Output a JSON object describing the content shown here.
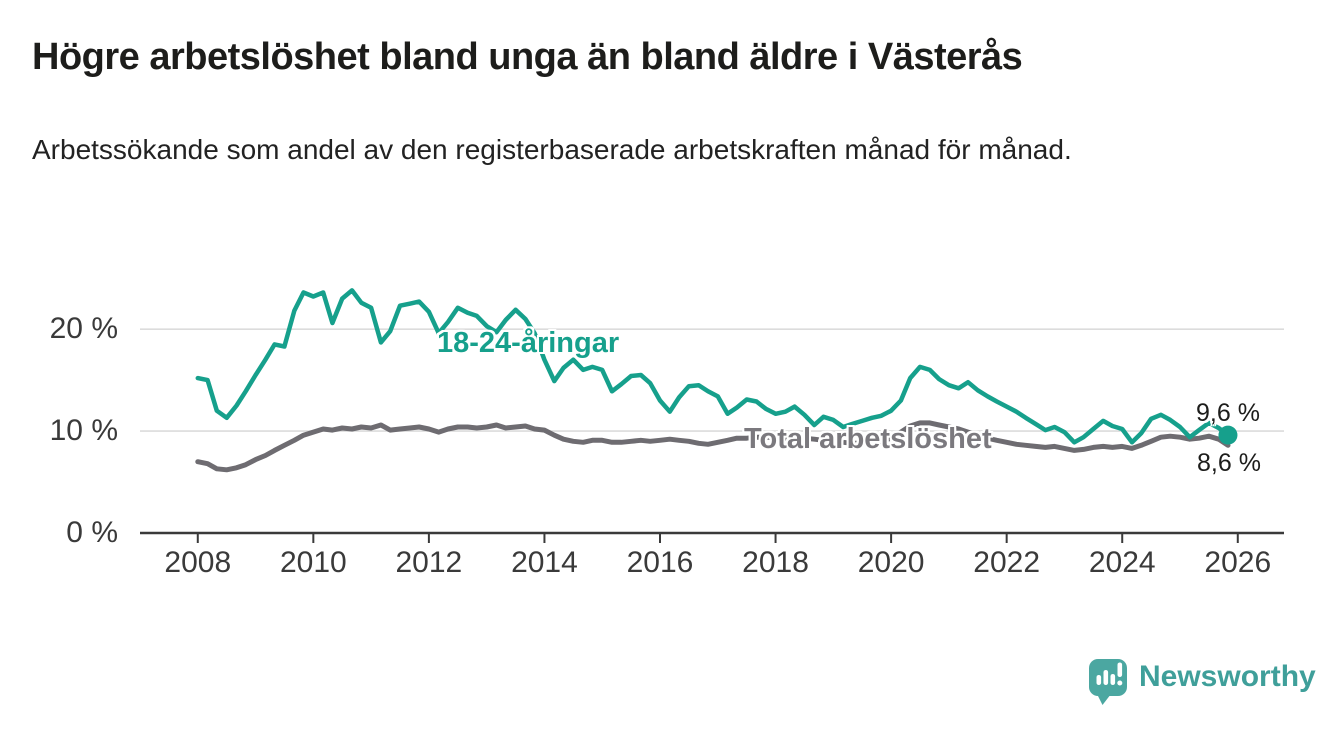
{
  "header": {
    "title": "Högre arbetslöshet bland unga än bland äldre i Västerås",
    "subtitle": "Arbetssökande som andel av den registerbaserade arbetskraften månad för månad."
  },
  "annotations": {
    "young_series_label": "18-24-åringar",
    "total_series_label": "Total arbetslöshet",
    "young_end_value": "9,6 %",
    "total_end_value": "8,6 %"
  },
  "footer": {
    "brand": "Newsworthy"
  },
  "colors": {
    "young_line": "#16a08c",
    "total_line": "#6e6c71",
    "total_label": "#7b797e",
    "grid": "#dcdcdc",
    "axis": "#3a3a3a",
    "text": "#1d1d1b",
    "logo_teal": "#4ba7a1",
    "logo_text": "#3f9f9a"
  },
  "chart_data": {
    "type": "line",
    "title": "Högre arbetslöshet bland unga än bland äldre i Västerås",
    "xlabel": "",
    "ylabel": "",
    "x_unit": "decimal_year_monthly",
    "xlim": [
      2007.0,
      2026.8
    ],
    "ylim": [
      0,
      26
    ],
    "grid": "horizontal",
    "legend": "inline-labels",
    "y_ticks": [
      {
        "value": 0,
        "label": "0 %"
      },
      {
        "value": 10,
        "label": "10 %"
      },
      {
        "value": 20,
        "label": "20 %"
      }
    ],
    "x_ticks": [
      {
        "value": 2008,
        "label": "2008"
      },
      {
        "value": 2010,
        "label": "2010"
      },
      {
        "value": 2012,
        "label": "2012"
      },
      {
        "value": 2014,
        "label": "2014"
      },
      {
        "value": 2016,
        "label": "2016"
      },
      {
        "value": 2018,
        "label": "2018"
      },
      {
        "value": 2020,
        "label": "2020"
      },
      {
        "value": 2022,
        "label": "2022"
      },
      {
        "value": 2024,
        "label": "2024"
      },
      {
        "value": 2026,
        "label": "2026"
      }
    ],
    "x": [
      2008,
      2008.17,
      2008.33,
      2008.5,
      2008.67,
      2008.83,
      2009,
      2009.17,
      2009.33,
      2009.5,
      2009.67,
      2009.83,
      2010,
      2010.17,
      2010.33,
      2010.5,
      2010.67,
      2010.83,
      2011,
      2011.17,
      2011.33,
      2011.5,
      2011.67,
      2011.83,
      2012,
      2012.17,
      2012.33,
      2012.5,
      2012.67,
      2012.83,
      2013,
      2013.17,
      2013.33,
      2013.5,
      2013.67,
      2013.83,
      2014,
      2014.17,
      2014.33,
      2014.5,
      2014.67,
      2014.83,
      2015,
      2015.17,
      2015.33,
      2015.5,
      2015.67,
      2015.83,
      2016,
      2016.17,
      2016.33,
      2016.5,
      2016.67,
      2016.83,
      2017,
      2017.17,
      2017.33,
      2017.5,
      2017.67,
      2017.83,
      2018,
      2018.17,
      2018.33,
      2018.5,
      2018.67,
      2018.83,
      2019,
      2019.17,
      2019.33,
      2019.5,
      2019.67,
      2019.83,
      2020,
      2020.17,
      2020.33,
      2020.5,
      2020.67,
      2020.83,
      2021,
      2021.17,
      2021.33,
      2021.5,
      2021.67,
      2021.83,
      2022,
      2022.17,
      2022.33,
      2022.5,
      2022.67,
      2022.83,
      2023,
      2023.17,
      2023.33,
      2023.5,
      2023.67,
      2023.83,
      2024,
      2024.17,
      2024.33,
      2024.5,
      2024.67,
      2024.83,
      2025,
      2025.17,
      2025.33,
      2025.5,
      2025.67,
      2025.83
    ],
    "series": [
      {
        "name": "18-24-åringar",
        "color": "#16a08c",
        "end_label": "9,6 %",
        "end_dot": true,
        "values": [
          15.2,
          15.0,
          12.0,
          11.3,
          12.5,
          13.9,
          15.5,
          17.0,
          18.5,
          18.3,
          21.8,
          23.6,
          23.2,
          23.6,
          20.6,
          23.0,
          23.8,
          22.6,
          22.1,
          18.7,
          19.8,
          22.3,
          22.5,
          22.7,
          21.7,
          19.6,
          20.7,
          22.1,
          21.6,
          21.3,
          20.3,
          19.7,
          20.9,
          21.9,
          21.0,
          19.6,
          17.0,
          14.9,
          16.2,
          17.0,
          16.0,
          16.3,
          16.0,
          13.9,
          14.6,
          15.4,
          15.5,
          14.7,
          13.0,
          11.9,
          13.3,
          14.4,
          14.5,
          13.9,
          13.4,
          11.7,
          12.3,
          13.1,
          12.9,
          12.2,
          11.7,
          11.9,
          12.4,
          11.6,
          10.6,
          11.4,
          11.1,
          10.4,
          10.7,
          11.0,
          11.3,
          11.5,
          12.0,
          13.0,
          15.2,
          16.3,
          16.0,
          15.1,
          14.5,
          14.2,
          14.8,
          14.0,
          13.4,
          12.9,
          12.4,
          11.9,
          11.3,
          10.7,
          10.1,
          10.4,
          9.9,
          8.9,
          9.4,
          10.2,
          11.0,
          10.5,
          10.2,
          8.9,
          9.8,
          11.2,
          11.6,
          11.1,
          10.4,
          9.4,
          10.1,
          10.8,
          10.3,
          9.6
        ]
      },
      {
        "name": "Total arbetslöshet",
        "color": "#6e6c71",
        "end_label": "8,6 %",
        "end_dot": false,
        "values": [
          7.0,
          6.8,
          6.3,
          6.2,
          6.4,
          6.7,
          7.2,
          7.6,
          8.1,
          8.6,
          9.1,
          9.6,
          9.9,
          10.2,
          10.1,
          10.3,
          10.2,
          10.4,
          10.3,
          10.6,
          10.1,
          10.2,
          10.3,
          10.4,
          10.2,
          9.9,
          10.2,
          10.4,
          10.4,
          10.3,
          10.4,
          10.6,
          10.3,
          10.4,
          10.5,
          10.2,
          10.1,
          9.6,
          9.2,
          9.0,
          8.9,
          9.1,
          9.1,
          8.9,
          8.9,
          9.0,
          9.1,
          9.0,
          9.1,
          9.2,
          9.1,
          9.0,
          8.8,
          8.7,
          8.9,
          9.1,
          9.3,
          9.3,
          9.4,
          9.4,
          9.4,
          9.3,
          9.2,
          9.3,
          9.2,
          9.1,
          9.0,
          8.9,
          8.8,
          8.8,
          8.9,
          9.0,
          9.3,
          9.9,
          10.5,
          10.8,
          10.8,
          10.6,
          10.4,
          10.2,
          9.9,
          9.6,
          9.3,
          9.1,
          8.9,
          8.7,
          8.6,
          8.5,
          8.4,
          8.5,
          8.3,
          8.1,
          8.2,
          8.4,
          8.5,
          8.4,
          8.5,
          8.3,
          8.6,
          9.0,
          9.4,
          9.5,
          9.4,
          9.2,
          9.3,
          9.5,
          9.2,
          8.6
        ]
      }
    ]
  }
}
